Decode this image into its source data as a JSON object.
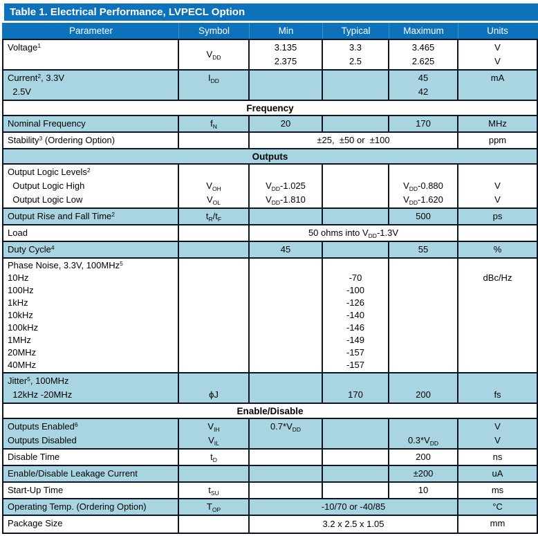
{
  "title": "Table 1. Electrical Performance, LVPECL Option",
  "colors": {
    "header_blue": "#0d72ba",
    "row_light_blue": "#a9d5e2",
    "border": "#0e1322"
  },
  "columns": [
    "Parameter",
    "Symbol",
    "Min",
    "Typical",
    "Maximum",
    "Units"
  ],
  "rows": [
    {
      "param": [
        "Voltage^1^"
      ],
      "symbol": [
        "V~DD~"
      ],
      "sym_center": true,
      "min": [
        "3.135",
        "2.375"
      ],
      "typ": [
        "3.3",
        "2.5"
      ],
      "max": [
        "3.465",
        "2.625"
      ],
      "units": [
        "V",
        "V"
      ],
      "shade": false
    },
    {
      "param": [
        "Current^2^, 3.3V",
        "  2.5V"
      ],
      "symbol": [
        "I~DD~"
      ],
      "min": [],
      "typ": [],
      "max": [
        "45",
        "42"
      ],
      "units": [
        "mA"
      ],
      "shade": true
    },
    {
      "section": "Frequency",
      "shade": false
    },
    {
      "param": [
        "Nominal Frequency"
      ],
      "symbol": [
        "f~N~"
      ],
      "min": [
        "20"
      ],
      "typ": [],
      "max": [
        "170"
      ],
      "units": [
        "MHz"
      ],
      "shade": true
    },
    {
      "param": [
        "Stability^3^ (Ordering Option)"
      ],
      "symbol": [],
      "span": "±25,  ±50 or  ±100",
      "units": [
        "ppm"
      ],
      "shade": false
    },
    {
      "section": "Outputs",
      "shade": true
    },
    {
      "param": [
        "Output Logic Levels^2^",
        "  Output Logic High",
        "  Output Logic Low"
      ],
      "symbol": [
        "",
        "V~OH~",
        "V~OL~"
      ],
      "min": [
        "",
        "V~DD~-1.025",
        "V~DD~-1.810"
      ],
      "typ": [],
      "max": [
        "",
        "V~DD~-0.880",
        "V~DD~-1.620"
      ],
      "units": [
        "",
        "V",
        "V"
      ],
      "shade": false
    },
    {
      "param": [
        "Output Rise and Fall Time^2^"
      ],
      "symbol": [
        "t~R~/t~F~"
      ],
      "min": [],
      "typ": [],
      "max": [
        "500"
      ],
      "units": [
        "ps"
      ],
      "shade": true
    },
    {
      "param": [
        "Load"
      ],
      "symbol": [],
      "span": "50 ohms into V~DD~-1.3V",
      "units": [],
      "shade": false
    },
    {
      "param": [
        "Duty Cycle^4^"
      ],
      "symbol": [],
      "min": [
        "45"
      ],
      "typ": [],
      "max": [
        "55"
      ],
      "units": [
        "%"
      ],
      "shade": true
    },
    {
      "param": [
        "Phase Noise, 3.3V, 100MHz^5^",
        "10Hz",
        "100Hz",
        "1kHz",
        "10kHz",
        "100kHz",
        "1MHz",
        "20MHz",
        "40MHz"
      ],
      "symbol": [],
      "min": [],
      "typ": [
        "",
        "-70",
        "-100",
        "-126",
        "-140",
        "-146",
        "-149",
        "-157",
        "-157"
      ],
      "max": [],
      "units": [
        "",
        "dBc/Hz"
      ],
      "shade": false,
      "tight": true
    },
    {
      "param": [
        "Jitter^5^, 100MHz",
        "  12kHz -20MHz"
      ],
      "symbol": [
        "",
        "ϕJ"
      ],
      "min": [],
      "typ": [
        "",
        "170"
      ],
      "max": [
        "",
        "200"
      ],
      "units": [
        "",
        "fs"
      ],
      "shade": true
    },
    {
      "section": "Enable/Disable",
      "shade": false
    },
    {
      "param": [
        "Outputs Enabled^6^",
        "Outputs Disabled"
      ],
      "symbol": [
        "V~IH~",
        "V~IL~"
      ],
      "min": [
        "0.7*V~DD~"
      ],
      "typ": [],
      "max": [
        "",
        "0.3*V~DD~"
      ],
      "units": [
        "V",
        "V"
      ],
      "shade": true
    },
    {
      "param": [
        "Disable Time"
      ],
      "symbol": [
        "t~D~"
      ],
      "min": [],
      "typ": [],
      "max": [
        "200"
      ],
      "units": [
        "ns"
      ],
      "shade": false
    },
    {
      "param": [
        "Enable/Disable Leakage Current"
      ],
      "symbol": [],
      "min": [],
      "typ": [],
      "max": [
        "±200"
      ],
      "units": [
        "uA"
      ],
      "shade": true
    },
    {
      "param": [
        "Start-Up Time"
      ],
      "symbol": [
        "t~SU~"
      ],
      "min": [],
      "typ": [],
      "max": [
        "10"
      ],
      "units": [
        "ms"
      ],
      "shade": false
    },
    {
      "param": [
        "Operating Temp. (Ordering Option)"
      ],
      "symbol": [
        "T~OP~"
      ],
      "span": "-10/70 or -40/85",
      "units": [
        "°C"
      ],
      "shade": true
    },
    {
      "param": [
        "Package Size"
      ],
      "symbol": [],
      "span": "3.2 x 2.5 x 1.05",
      "units": [
        "mm"
      ],
      "shade": false
    }
  ]
}
